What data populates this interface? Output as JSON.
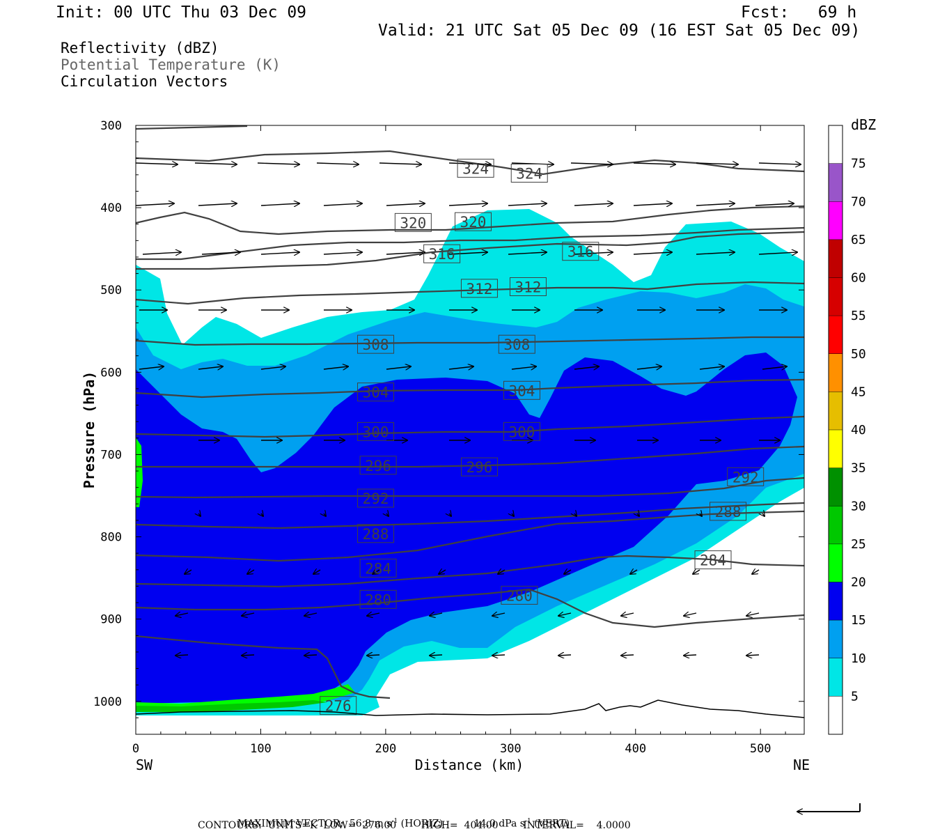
{
  "header": {
    "init": "Init: 00 UTC Thu 03 Dec 09",
    "fcst": "Fcst:   69 h",
    "valid": "Valid: 21 UTC Sat 05 Dec 09 (16 EST Sat 05 Dec 09)"
  },
  "fields": {
    "line1": "Reflectivity (dBZ)",
    "line2": "Potential Temperature (K)",
    "line3": "Circulation Vectors"
  },
  "footer": {
    "max_label": "MAXIMUM VECTOR:",
    "max_h_val": "56.8",
    "max_h_unit": "m s",
    "max_h_tag": " (HORIZ)",
    "max_v_val": "14.0",
    "max_v_unit": "dPa s",
    "max_v_tag": " (VERT)",
    "exp": "-1",
    "contours": "CONTOURS:  UNITS=K  LOW=  276.00        HIGH=  404.00        INTERVAL=    4.0000"
  },
  "colors": {
    "dbz": [
      "#ffffff",
      "#00e6e6",
      "#00a0f0",
      "#0000f0",
      "#00ff00",
      "#00c800",
      "#009000",
      "#ffff00",
      "#e6be00",
      "#ff9000",
      "#ff0000",
      "#d60000",
      "#c00000",
      "#ff00ff",
      "#9955c9",
      "#ffffff"
    ],
    "theta": "#404040",
    "vector": "#000000"
  },
  "chart_data": {
    "type": "cross-section",
    "xlabel": "Distance (km)",
    "ylabel": "Pressure (hPa)",
    "xlim": [
      0,
      535
    ],
    "ylim": [
      1040,
      300
    ],
    "x_ticks": [
      0,
      100,
      200,
      300,
      400,
      500
    ],
    "y_ticks": [
      300,
      400,
      500,
      600,
      700,
      800,
      900,
      1000
    ],
    "x_end_labels": {
      "left": "SW",
      "right": "NE"
    },
    "colorbar": {
      "unit": "dBZ",
      "levels": [
        5,
        10,
        15,
        20,
        25,
        30,
        35,
        40,
        45,
        50,
        55,
        60,
        65,
        70,
        75
      ]
    },
    "theta_contours": [
      {
        "value": 324,
        "label_points": [
          [
            272,
            352
          ],
          [
            315,
            358
          ]
        ]
      },
      {
        "value": 320,
        "label_points": [
          [
            222,
            418
          ],
          [
            270,
            417
          ]
        ]
      },
      {
        "value": 316,
        "label_points": [
          [
            245,
            456
          ],
          [
            356,
            453
          ]
        ]
      },
      {
        "value": 312,
        "label_points": [
          [
            275,
            498
          ],
          [
            314,
            496
          ]
        ]
      },
      {
        "value": 308,
        "label_points": [
          [
            192,
            566
          ],
          [
            305,
            566
          ]
        ]
      },
      {
        "value": 304,
        "label_points": [
          [
            192,
            624
          ],
          [
            309,
            622
          ]
        ]
      },
      {
        "value": 300,
        "label_points": [
          [
            192,
            672
          ],
          [
            309,
            672
          ]
        ]
      },
      {
        "value": 296,
        "label_points": [
          [
            194,
            713
          ],
          [
            275,
            715
          ]
        ]
      },
      {
        "value": 292,
        "label_points": [
          [
            192,
            753
          ],
          [
            488,
            727
          ]
        ]
      },
      {
        "value": 288,
        "label_points": [
          [
            192,
            796
          ],
          [
            474,
            769
          ]
        ]
      },
      {
        "value": 284,
        "label_points": [
          [
            194,
            838
          ],
          [
            462,
            828
          ]
        ]
      },
      {
        "value": 280,
        "label_points": [
          [
            194,
            876
          ],
          [
            307,
            871
          ]
        ]
      },
      {
        "value": 276,
        "label_points": [
          [
            162,
            1005
          ]
        ]
      }
    ]
  }
}
